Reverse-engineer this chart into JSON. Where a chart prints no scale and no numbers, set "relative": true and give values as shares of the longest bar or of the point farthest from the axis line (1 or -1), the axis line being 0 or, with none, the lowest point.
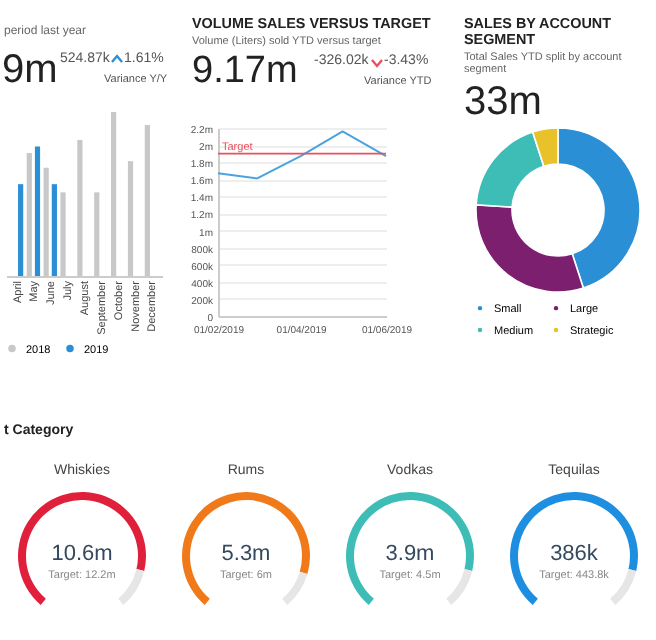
{
  "chart_data": [
    {
      "type": "bar",
      "subtitle": "period last year",
      "annotations": [
        "9m",
        "524.87k",
        "1.61%",
        "Variance Y/Y"
      ],
      "categories": [
        "April",
        "May",
        "June",
        "July",
        "August",
        "September",
        "October",
        "November",
        "December"
      ],
      "series": [
        {
          "name": "2018",
          "color": "#c8c8c8",
          "values": [
            null,
            0.75,
            0.66,
            0.51,
            0.83,
            0.51,
            1.0,
            0.7,
            0.92
          ]
        },
        {
          "name": "2019",
          "color": "#2b8fd6",
          "values": [
            0.56,
            0.79,
            0.56,
            null,
            null,
            null,
            null,
            null,
            null
          ]
        }
      ],
      "relative": true,
      "legend": "bottom"
    },
    {
      "type": "line",
      "title": "VOLUME SALES VERSUS TARGET",
      "subtitle": "Volume (Liters) sold YTD versus target",
      "annotations": [
        "9.17m",
        "-326.02k",
        "-3.43%",
        "Variance YTD"
      ],
      "x": [
        "2019-02-01",
        "2019-03-01",
        "2019-04-01",
        "2019-05-01",
        "2019-06-01"
      ],
      "series": [
        {
          "color": "#4aa3df",
          "values": [
            1670000,
            1610000,
            1870000,
            2160000,
            1870000
          ]
        }
      ],
      "xlim": [
        "2019-02-01",
        "2019-06-01"
      ],
      "xticks": [
        {
          "value": "2019-02-01",
          "label": "01/02/2019"
        },
        {
          "value": "2019-04-01",
          "label": "01/04/2019"
        },
        {
          "value": "2019-06-01",
          "label": "01/06/2019"
        }
      ],
      "ylim": [
        0,
        2200000
      ],
      "yticks": [
        0,
        {
          "value": 200000,
          "label": "200k"
        },
        {
          "value": 400000,
          "label": "400k"
        },
        {
          "value": 600000,
          "label": "600k"
        },
        {
          "value": 800000,
          "label": "800k"
        },
        {
          "value": 1000000,
          "label": "1m"
        },
        {
          "value": 1200000,
          "label": "1.2m"
        },
        {
          "value": 1400000,
          "label": "1.4m"
        },
        {
          "value": 1600000,
          "label": "1.6m"
        },
        {
          "value": 1800000,
          "label": "1.8m"
        },
        {
          "value": 2000000,
          "label": "2m"
        },
        {
          "value": 2200000,
          "label": "2.2m"
        }
      ],
      "grid": "y",
      "ref_lines": [
        {
          "axis": "y",
          "value": 1900000,
          "label": "Target",
          "color": "#e8505b"
        }
      ]
    },
    {
      "type": "donut",
      "title": "SALES BY ACCOUNT SEGMENT",
      "subtitle": "Total Sales YTD split by account segment",
      "annotations": [
        "33m"
      ],
      "categories": [
        "Small",
        "Large",
        "Medium",
        "Strategic"
      ],
      "values": [
        45,
        31,
        19,
        5
      ],
      "colors": [
        "#2b8fd6",
        "#7b1f6e",
        "#3dbdb5",
        "#e8c22a"
      ],
      "legend": "bottom"
    },
    {
      "type": "donut",
      "title": "Whiskies",
      "annotations": [
        "t Category",
        "10.6m",
        "Target: 12.2m"
      ],
      "categories": [
        null,
        null
      ],
      "values": [
        87,
        13
      ],
      "colors": [
        "#e0203a",
        "#e6e6e6"
      ]
    },
    {
      "type": "donut",
      "title": "Rums",
      "annotations": [
        "5.3m",
        "Target: 6m"
      ],
      "categories": [
        null,
        null
      ],
      "values": [
        88,
        12
      ],
      "colors": [
        "#f07a1a",
        "#e6e6e6"
      ]
    },
    {
      "type": "donut",
      "title": "Vodkas",
      "annotations": [
        "3.9m",
        "Target: 4.5m"
      ],
      "categories": [
        null,
        null
      ],
      "values": [
        87,
        13
      ],
      "colors": [
        "#3dbdb5",
        "#e6e6e6"
      ]
    },
    {
      "type": "donut",
      "title": "Tequilas",
      "annotations": [
        "386k",
        "Target: 443.8k"
      ],
      "categories": [
        null,
        null
      ],
      "values": [
        87,
        13
      ],
      "colors": [
        "#1e8fe0",
        "#e6e6e6"
      ]
    }
  ]
}
